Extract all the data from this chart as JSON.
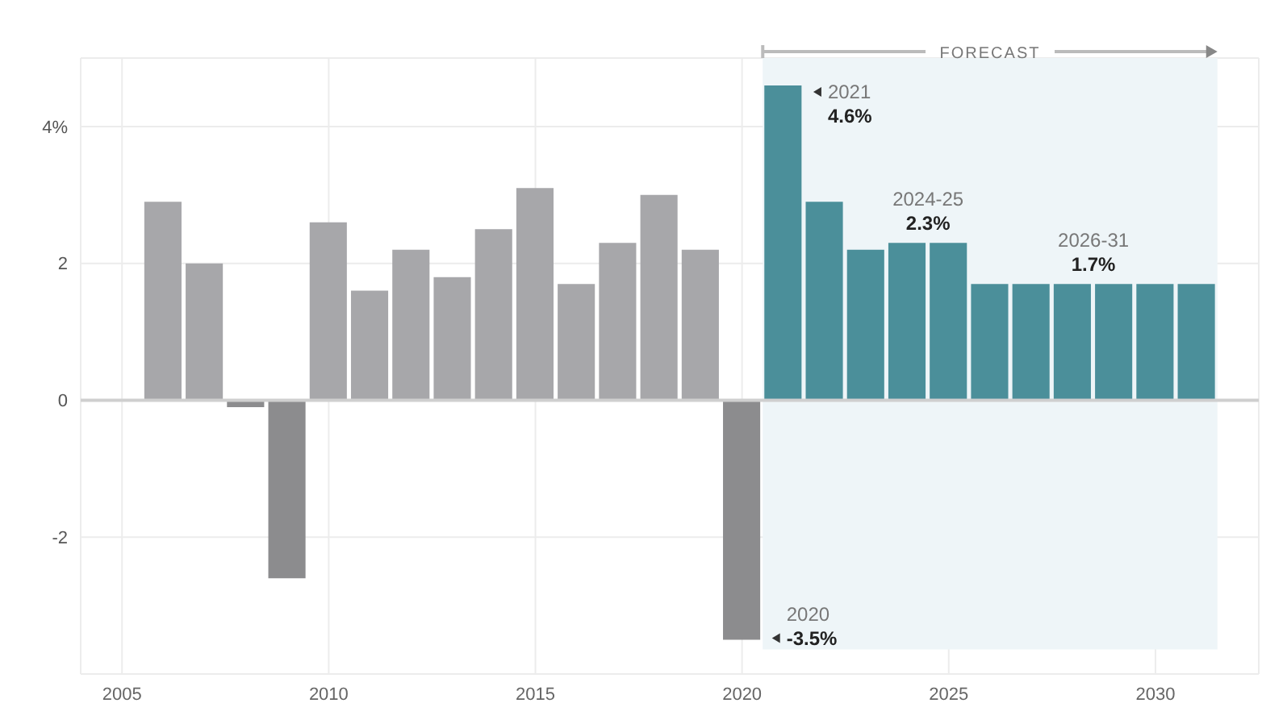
{
  "chart_data": {
    "type": "bar",
    "x": [
      2006,
      2007,
      2008,
      2009,
      2010,
      2011,
      2012,
      2013,
      2014,
      2015,
      2016,
      2017,
      2018,
      2019,
      2020,
      2021,
      2022,
      2023,
      2024,
      2025,
      2026,
      2027,
      2028,
      2029,
      2030,
      2031
    ],
    "values": [
      2.9,
      2.0,
      -0.1,
      -2.6,
      2.6,
      1.6,
      2.2,
      1.8,
      2.5,
      3.1,
      1.7,
      2.3,
      3.0,
      2.2,
      -3.5,
      4.6,
      2.9,
      2.2,
      2.3,
      2.3,
      1.7,
      1.7,
      1.7,
      1.7,
      1.7,
      1.7
    ],
    "colors": [
      "#a7a7aa",
      "#a7a7aa",
      "#8c8c8e",
      "#8c8c8e",
      "#a7a7aa",
      "#a7a7aa",
      "#a7a7aa",
      "#a7a7aa",
      "#a7a7aa",
      "#a7a7aa",
      "#a7a7aa",
      "#a7a7aa",
      "#a7a7aa",
      "#a7a7aa",
      "#8c8c8e",
      "#4b8f9a",
      "#4b8f9a",
      "#4b8f9a",
      "#4b8f9a",
      "#4b8f9a",
      "#4b8f9a",
      "#4b8f9a",
      "#4b8f9a",
      "#4b8f9a",
      "#4b8f9a",
      "#4b8f9a"
    ],
    "xlim": [
      2004,
      2032.5
    ],
    "xticks": [
      2005,
      2010,
      2015,
      2020,
      2025,
      2030
    ],
    "ylim": [
      -4,
      5
    ],
    "yticks": [
      {
        "value": 4,
        "label": "4%"
      },
      2,
      0,
      -2
    ],
    "grid": true,
    "ref_lines": [
      {
        "axis": "y",
        "value": 0,
        "color": "#cfcfcf"
      }
    ],
    "bands": [
      {
        "axis": "x",
        "from": 2020.5,
        "to": 2031.5,
        "label": "FORECAST",
        "color": "#eef5f8"
      }
    ],
    "annotations": [
      {
        "text": "2021\n4.6%",
        "x": 2021,
        "y": 4.6
      },
      {
        "text": "2024-25\n2.3%",
        "x": 2024.5,
        "y": 2.3
      },
      {
        "text": "2026-31\n1.7%",
        "x": 2028.5,
        "y": 1.7
      },
      {
        "text": "2020\n-3.5%",
        "x": 2020,
        "y": -3.5
      }
    ]
  }
}
